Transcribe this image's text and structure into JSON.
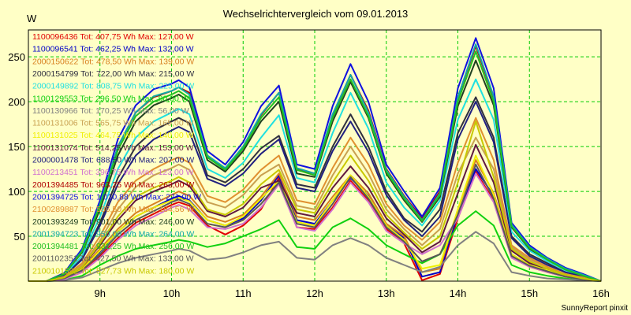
{
  "chart_data": {
    "type": "line",
    "title": "Wechselrichtervergleich vom 09.01.2013",
    "ylabel": "W",
    "footer": "SunnyReport pinxit",
    "background": "#ffffc6",
    "grid_color": "#00cc00",
    "grid": true,
    "x_range": [
      8.0,
      16.0
    ],
    "ylim": [
      0,
      280
    ],
    "x_ticks": [
      {
        "value": 9,
        "label": "9h"
      },
      {
        "value": 10,
        "label": "10h"
      },
      {
        "value": 11,
        "label": "11h"
      },
      {
        "value": 12,
        "label": "12h"
      },
      {
        "value": 13,
        "label": "13h"
      },
      {
        "value": 14,
        "label": "14h"
      },
      {
        "value": 15,
        "label": "15h"
      },
      {
        "value": 16,
        "label": "16h"
      }
    ],
    "y_ticks": [
      50,
      100,
      150,
      200,
      250
    ],
    "x": [
      8.0,
      8.25,
      8.5,
      8.75,
      9.0,
      9.25,
      9.5,
      9.75,
      10.0,
      10.1,
      10.25,
      10.5,
      10.75,
      11.0,
      11.25,
      11.5,
      11.75,
      12.0,
      12.25,
      12.5,
      12.75,
      13.0,
      13.25,
      13.5,
      13.75,
      14.0,
      14.25,
      14.5,
      14.75,
      15.0,
      15.25,
      15.5,
      15.75,
      16.0
    ],
    "legend_placement": "top-left",
    "series": [
      {
        "name": "1100096436",
        "label": "1100096436 Tot: 407,75 Wh Max: 127,00 W",
        "color": "#e00000",
        "values": [
          0,
          0,
          2,
          10,
          28,
          48,
          65,
          75,
          85,
          88,
          84,
          62,
          52,
          62,
          80,
          115,
          60,
          58,
          82,
          112,
          90,
          58,
          42,
          1,
          8,
          70,
          122,
          90,
          28,
          16,
          10,
          5,
          2,
          0
        ]
      },
      {
        "name": "1100096541",
        "label": "1100096541 Tot: 462,25 Wh Max: 132,00 W",
        "color": "#0000c8",
        "values": [
          0,
          0,
          3,
          12,
          33,
          55,
          72,
          82,
          92,
          95,
          90,
          68,
          62,
          70,
          90,
          118,
          68,
          64,
          90,
          115,
          95,
          62,
          48,
          5,
          10,
          75,
          125,
          95,
          30,
          18,
          12,
          6,
          2,
          0
        ]
      },
      {
        "name": "2000150622",
        "label": "2000150622 Tot: 478,50 Wh Max: 139,00 W",
        "color": "#d88020",
        "values": [
          0,
          0,
          3,
          14,
          36,
          58,
          76,
          86,
          96,
          100,
          95,
          72,
          66,
          74,
          94,
          120,
          72,
          68,
          94,
          118,
          98,
          64,
          50,
          10,
          14,
          80,
          135,
          98,
          34,
          20,
          14,
          7,
          3,
          0
        ]
      },
      {
        "name": "2000154799",
        "label": "2000154799 Tot: 722,00 Wh Max: 215,00 W",
        "color": "#303040",
        "values": [
          0,
          0,
          6,
          25,
          65,
          115,
          150,
          168,
          178,
          182,
          176,
          118,
          110,
          125,
          148,
          162,
          108,
          104,
          150,
          186,
          150,
          100,
          70,
          55,
          80,
          165,
          205,
          160,
          50,
          30,
          20,
          10,
          5,
          0
        ]
      },
      {
        "name": "2000149892",
        "label": "2000149892 Tot: 808,75 Wh Max: 225,00 W",
        "color": "#20e0e0",
        "values": [
          0,
          0,
          7,
          28,
          72,
          125,
          160,
          178,
          188,
          192,
          186,
          125,
          115,
          132,
          160,
          185,
          115,
          110,
          165,
          210,
          170,
          110,
          82,
          62,
          90,
          180,
          225,
          180,
          55,
          34,
          22,
          12,
          6,
          0
        ]
      },
      {
        "name": "1100129553",
        "label": "1100129553 Tot: 296,50 Wh Max: 80,00 W",
        "color": "#10d010",
        "values": [
          0,
          0,
          1,
          6,
          18,
          28,
          36,
          40,
          44,
          46,
          44,
          38,
          42,
          50,
          58,
          68,
          38,
          36,
          60,
          70,
          58,
          40,
          30,
          20,
          30,
          62,
          78,
          62,
          18,
          10,
          6,
          3,
          1,
          0
        ]
      },
      {
        "name": "1100130966",
        "label": "1100130966 Tot: 170,25 Wh Max: 56,00 W",
        "color": "#808080",
        "values": [
          0,
          0,
          1,
          4,
          12,
          20,
          26,
          30,
          34,
          36,
          34,
          24,
          26,
          32,
          40,
          44,
          26,
          24,
          40,
          48,
          40,
          26,
          18,
          10,
          16,
          40,
          55,
          42,
          10,
          6,
          3,
          2,
          1,
          0
        ]
      },
      {
        "name": "1100131006",
        "label": "1100131006 Tot: 565,75 Wh Max: 165,00 W",
        "color": "#c8a050",
        "values": [
          0,
          0,
          4,
          18,
          45,
          80,
          105,
          118,
          126,
          130,
          124,
          88,
          82,
          96,
          118,
          130,
          84,
          80,
          118,
          150,
          120,
          80,
          58,
          40,
          58,
          120,
          160,
          125,
          38,
          24,
          16,
          8,
          4,
          0
        ]
      },
      {
        "name": "1100131025",
        "label": "1100131025 Tot: 464,75 Wh Max: 140,00 W",
        "color": "#f0f000",
        "values": [
          0,
          0,
          3,
          13,
          34,
          55,
          72,
          82,
          90,
          93,
          89,
          68,
          62,
          72,
          92,
          112,
          66,
          62,
          90,
          118,
          94,
          62,
          46,
          14,
          18,
          80,
          140,
          96,
          30,
          18,
          12,
          6,
          3,
          0
        ]
      },
      {
        "name": "1100131074",
        "label": "1100131074 Tot: 514,25 Wh Max: 153,00 W",
        "color": "#601840",
        "values": [
          0,
          0,
          4,
          16,
          40,
          68,
          90,
          100,
          108,
          112,
          106,
          78,
          72,
          82,
          104,
          112,
          76,
          72,
          104,
          128,
          104,
          70,
          52,
          32,
          44,
          98,
          152,
          110,
          34,
          20,
          14,
          7,
          3,
          0
        ]
      },
      {
        "name": "2000001478",
        "label": "2000001478 Tot: 688,50 Wh Max: 207,00 W",
        "color": "#202080",
        "values": [
          0,
          0,
          6,
          24,
          62,
          108,
          140,
          158,
          168,
          172,
          166,
          114,
          106,
          120,
          142,
          158,
          104,
          100,
          145,
          178,
          144,
          96,
          68,
          50,
          72,
          158,
          200,
          155,
          48,
          28,
          18,
          10,
          5,
          0
        ]
      },
      {
        "name": "1100213451",
        "label": "1100213451 Tot: 396,75 Wh Max: 123,00 W",
        "color": "#d070d0",
        "values": [
          0,
          0,
          2,
          10,
          26,
          46,
          62,
          72,
          82,
          85,
          80,
          60,
          58,
          64,
          82,
          108,
          60,
          56,
          80,
          110,
          88,
          56,
          42,
          30,
          40,
          70,
          120,
          88,
          26,
          16,
          10,
          5,
          2,
          0
        ]
      },
      {
        "name": "2001394485",
        "label": "2001394485 Tot: 963,25 Wh Max: 263,00 W",
        "color": "#b00000",
        "values": [
          0,
          0,
          8,
          34,
          85,
          150,
          188,
          205,
          212,
          216,
          210,
          140,
          125,
          150,
          185,
          210,
          125,
          120,
          185,
          230,
          190,
          125,
          95,
          70,
          100,
          205,
          262,
          205,
          62,
          38,
          25,
          14,
          7,
          0
        ]
      },
      {
        "name": "2001394725",
        "label": "2001394725 Tot: 1.010,88 Wh Max: 271,00 W",
        "color": "#1010e0",
        "values": [
          0,
          0,
          9,
          36,
          90,
          158,
          196,
          214,
          220,
          224,
          216,
          145,
          130,
          155,
          195,
          218,
          130,
          125,
          195,
          242,
          200,
          130,
          100,
          72,
          104,
          215,
          271,
          215,
          65,
          40,
          26,
          15,
          8,
          0
        ]
      },
      {
        "name": "2100289887",
        "label": "2100289887 Tot: 586,50 Wh Max: 184,56 W",
        "color": "#e09030",
        "values": [
          0,
          0,
          5,
          20,
          50,
          88,
          112,
          125,
          135,
          138,
          132,
          95,
          88,
          102,
          124,
          140,
          90,
          86,
          126,
          160,
          130,
          86,
          62,
          46,
          66,
          132,
          182,
          135,
          40,
          26,
          16,
          8,
          4,
          0
        ]
      },
      {
        "name": "2001393249",
        "label": "2001393249 Tot: 901,00 Wh Max: 246,00 W",
        "color": "#204020",
        "values": [
          0,
          0,
          8,
          32,
          80,
          140,
          178,
          196,
          204,
          208,
          200,
          135,
          122,
          145,
          178,
          200,
          120,
          116,
          178,
          222,
          182,
          120,
          90,
          66,
          94,
          195,
          246,
          196,
          60,
          36,
          24,
          13,
          6,
          0
        ]
      },
      {
        "name": "2001394723",
        "label": "2001394723 Tot: 950,00 Wh Max: 264,00 W",
        "color": "#10a8a8",
        "values": [
          0,
          0,
          8,
          34,
          86,
          150,
          188,
          206,
          212,
          216,
          208,
          140,
          126,
          150,
          186,
          210,
          126,
          120,
          186,
          230,
          188,
          124,
          94,
          68,
          98,
          205,
          264,
          206,
          63,
          38,
          25,
          14,
          7,
          0
        ]
      },
      {
        "name": "2001394481",
        "label": "2001394481 Tot: 931,25 Wh Max: 256,00 W",
        "color": "#20c020",
        "values": [
          0,
          0,
          8,
          33,
          84,
          146,
          184,
          200,
          208,
          212,
          204,
          138,
          124,
          148,
          182,
          205,
          124,
          118,
          182,
          225,
          184,
          122,
          92,
          67,
          96,
          200,
          256,
          200,
          61,
          37,
          24,
          13,
          6,
          0
        ]
      },
      {
        "name": "2001102351",
        "label": "2001102351 Tot: 427,50 Wh Max: 133,00 W",
        "color": "#585858",
        "values": [
          0,
          0,
          3,
          12,
          30,
          52,
          68,
          78,
          88,
          91,
          86,
          64,
          60,
          68,
          86,
          110,
          64,
          60,
          86,
          116,
          92,
          60,
          44,
          22,
          30,
          74,
          130,
          92,
          28,
          17,
          11,
          5,
          2,
          0
        ]
      },
      {
        "name": "2100101592",
        "label": "2100101592 Tot: 527,73 Wh Max: 180,00 W",
        "color": "#c8c800",
        "values": [
          0,
          0,
          4,
          16,
          42,
          72,
          94,
          104,
          112,
          116,
          110,
          80,
          74,
          86,
          108,
          124,
          80,
          76,
          110,
          140,
          112,
          74,
          54,
          36,
          50,
          110,
          178,
          116,
          36,
          22,
          14,
          7,
          3,
          0
        ]
      }
    ]
  }
}
